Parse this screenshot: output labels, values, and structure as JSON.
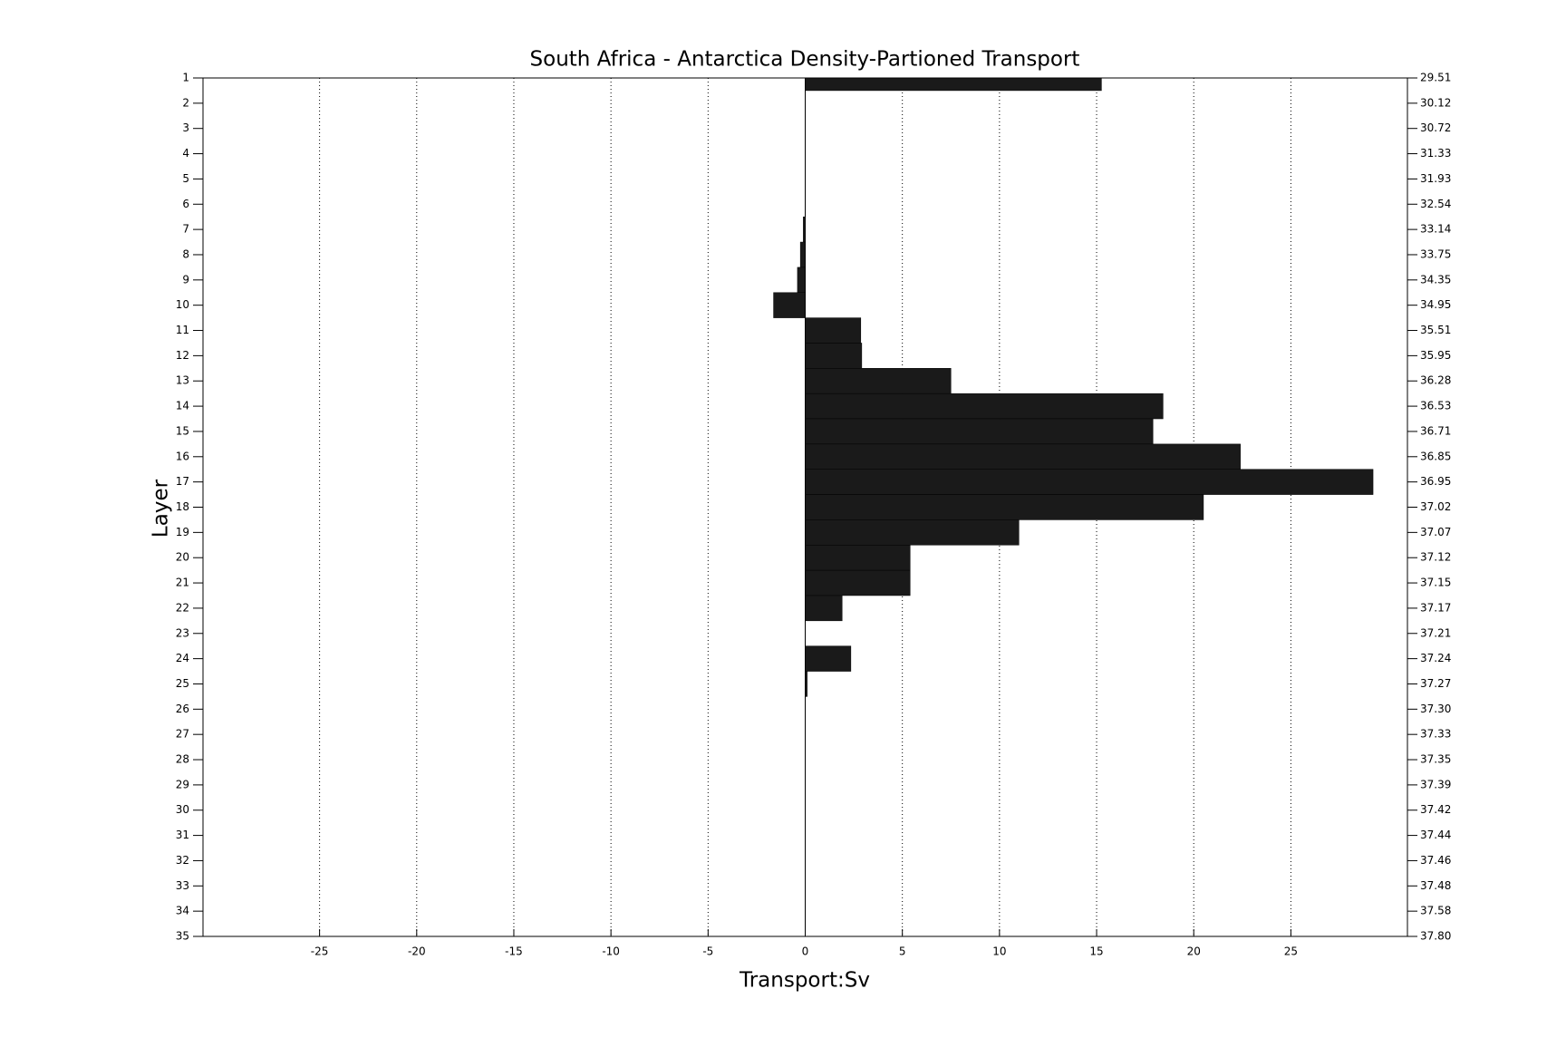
{
  "chart_data": {
    "type": "barh",
    "title": "South Africa - Antarctica Density-Partioned Transport",
    "xlabel": "Transport:Sv",
    "ylabel": "Layer",
    "color": "#1a1a1a",
    "y": [
      1,
      2,
      3,
      4,
      5,
      6,
      7,
      8,
      9,
      10,
      11,
      12,
      13,
      14,
      15,
      16,
      17,
      18,
      19,
      20,
      21,
      22,
      23,
      24,
      25,
      26,
      27,
      28,
      29,
      30,
      31,
      32,
      33,
      34,
      35
    ],
    "values": [
      15.25,
      0,
      0,
      0,
      0,
      0,
      -0.1,
      -0.25,
      -0.4,
      -1.63,
      2.86,
      2.91,
      7.5,
      18.42,
      17.9,
      22.4,
      29.23,
      20.5,
      11.0,
      5.4,
      5.4,
      1.9,
      0,
      2.35,
      0.1,
      0,
      0,
      0,
      0,
      0,
      0,
      0,
      0,
      0,
      0
    ],
    "xlim": [
      -31,
      31
    ],
    "xticks": [
      -25,
      -20,
      -15,
      -10,
      -5,
      0,
      5,
      10,
      15,
      20,
      25
    ],
    "ylim": [
      1,
      35
    ],
    "y_inverted": true,
    "yticks": [
      1,
      2,
      3,
      4,
      5,
      6,
      7,
      8,
      9,
      10,
      11,
      12,
      13,
      14,
      15,
      16,
      17,
      18,
      19,
      20,
      21,
      22,
      23,
      24,
      25,
      26,
      27,
      28,
      29,
      30,
      31,
      32,
      33,
      34,
      35
    ],
    "y2lim": [
      1,
      35
    ],
    "y2ticks": [
      {
        "value": 1,
        "label": "29.51"
      },
      {
        "value": 2,
        "label": "30.12"
      },
      {
        "value": 3,
        "label": "30.72"
      },
      {
        "value": 4,
        "label": "31.33"
      },
      {
        "value": 5,
        "label": "31.93"
      },
      {
        "value": 6,
        "label": "32.54"
      },
      {
        "value": 7,
        "label": "33.14"
      },
      {
        "value": 8,
        "label": "33.75"
      },
      {
        "value": 9,
        "label": "34.35"
      },
      {
        "value": 10,
        "label": "34.95"
      },
      {
        "value": 11,
        "label": "35.51"
      },
      {
        "value": 12,
        "label": "35.95"
      },
      {
        "value": 13,
        "label": "36.28"
      },
      {
        "value": 14,
        "label": "36.53"
      },
      {
        "value": 15,
        "label": "36.71"
      },
      {
        "value": 16,
        "label": "36.85"
      },
      {
        "value": 17,
        "label": "36.95"
      },
      {
        "value": 18,
        "label": "37.02"
      },
      {
        "value": 19,
        "label": "37.07"
      },
      {
        "value": 20,
        "label": "37.12"
      },
      {
        "value": 21,
        "label": "37.15"
      },
      {
        "value": 22,
        "label": "37.17"
      },
      {
        "value": 23,
        "label": "37.21"
      },
      {
        "value": 24,
        "label": "37.24"
      },
      {
        "value": 25,
        "label": "37.27"
      },
      {
        "value": 26,
        "label": "37.30"
      },
      {
        "value": 27,
        "label": "37.33"
      },
      {
        "value": 28,
        "label": "37.35"
      },
      {
        "value": 29,
        "label": "37.39"
      },
      {
        "value": 30,
        "label": "37.42"
      },
      {
        "value": 31,
        "label": "37.44"
      },
      {
        "value": 32,
        "label": "37.46"
      },
      {
        "value": 33,
        "label": "37.48"
      },
      {
        "value": 34,
        "label": "37.58"
      },
      {
        "value": 35,
        "label": "37.80"
      }
    ],
    "grid": true
  }
}
